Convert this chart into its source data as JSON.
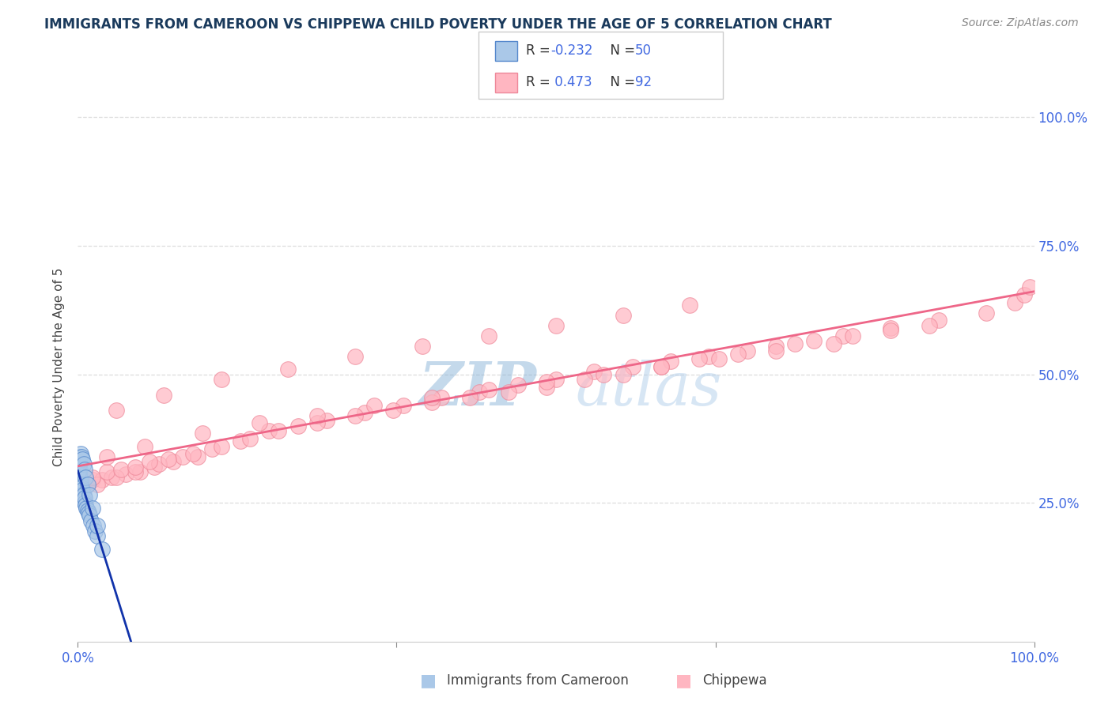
{
  "title": "IMMIGRANTS FROM CAMEROON VS CHIPPEWA CHILD POVERTY UNDER THE AGE OF 5 CORRELATION CHART",
  "source": "Source: ZipAtlas.com",
  "ylabel": "Child Poverty Under the Age of 5",
  "xlim": [
    0.0,
    1.0
  ],
  "ylim": [
    -0.02,
    1.05
  ],
  "color_blue_fill": "#aac8e8",
  "color_blue_edge": "#5588cc",
  "color_pink_fill": "#ffb6c1",
  "color_pink_edge": "#ee8899",
  "color_blue_line": "#1133aa",
  "color_pink_line": "#ee6688",
  "color_dashed": "#8899cc",
  "watermark_color": "#b8d4ee",
  "background": "#ffffff",
  "grid_color": "#dddddd",
  "title_color": "#1a3a5c",
  "ax_tick_color": "#4169e1",
  "blue_x": [
    0.0005,
    0.0008,
    0.001,
    0.001,
    0.0012,
    0.0015,
    0.0015,
    0.002,
    0.002,
    0.002,
    0.002,
    0.002,
    0.003,
    0.003,
    0.003,
    0.003,
    0.004,
    0.004,
    0.004,
    0.005,
    0.005,
    0.005,
    0.006,
    0.006,
    0.007,
    0.007,
    0.008,
    0.009,
    0.01,
    0.011,
    0.012,
    0.014,
    0.016,
    0.018,
    0.02,
    0.025,
    0.0005,
    0.001,
    0.0015,
    0.002,
    0.003,
    0.004,
    0.005,
    0.006,
    0.007,
    0.008,
    0.01,
    0.012,
    0.015,
    0.02
  ],
  "blue_y": [
    0.285,
    0.29,
    0.295,
    0.3,
    0.305,
    0.285,
    0.31,
    0.275,
    0.28,
    0.29,
    0.3,
    0.315,
    0.27,
    0.275,
    0.285,
    0.295,
    0.265,
    0.27,
    0.28,
    0.26,
    0.265,
    0.275,
    0.255,
    0.265,
    0.25,
    0.26,
    0.245,
    0.24,
    0.235,
    0.23,
    0.225,
    0.215,
    0.205,
    0.195,
    0.185,
    0.16,
    0.31,
    0.33,
    0.325,
    0.34,
    0.345,
    0.34,
    0.335,
    0.325,
    0.315,
    0.3,
    0.285,
    0.265,
    0.24,
    0.205
  ],
  "pink_x": [
    0.002,
    0.01,
    0.015,
    0.025,
    0.035,
    0.05,
    0.065,
    0.08,
    0.1,
    0.125,
    0.01,
    0.02,
    0.04,
    0.06,
    0.085,
    0.11,
    0.14,
    0.17,
    0.2,
    0.23,
    0.26,
    0.3,
    0.34,
    0.38,
    0.42,
    0.46,
    0.5,
    0.54,
    0.58,
    0.62,
    0.66,
    0.7,
    0.75,
    0.8,
    0.85,
    0.9,
    0.95,
    0.98,
    0.99,
    0.995,
    0.005,
    0.015,
    0.03,
    0.045,
    0.06,
    0.075,
    0.095,
    0.12,
    0.15,
    0.18,
    0.21,
    0.25,
    0.29,
    0.33,
    0.37,
    0.41,
    0.45,
    0.49,
    0.53,
    0.57,
    0.61,
    0.65,
    0.69,
    0.73,
    0.77,
    0.81,
    0.85,
    0.89,
    0.03,
    0.07,
    0.13,
    0.19,
    0.25,
    0.31,
    0.37,
    0.43,
    0.49,
    0.55,
    0.61,
    0.67,
    0.73,
    0.79,
    0.04,
    0.09,
    0.15,
    0.22,
    0.29,
    0.36,
    0.43,
    0.5,
    0.57,
    0.64
  ],
  "pink_y": [
    0.285,
    0.285,
    0.295,
    0.295,
    0.3,
    0.305,
    0.31,
    0.32,
    0.33,
    0.34,
    0.29,
    0.285,
    0.3,
    0.31,
    0.325,
    0.34,
    0.355,
    0.37,
    0.39,
    0.4,
    0.41,
    0.425,
    0.44,
    0.455,
    0.465,
    0.48,
    0.49,
    0.505,
    0.515,
    0.525,
    0.535,
    0.545,
    0.56,
    0.575,
    0.59,
    0.605,
    0.62,
    0.64,
    0.655,
    0.67,
    0.29,
    0.3,
    0.31,
    0.315,
    0.32,
    0.33,
    0.335,
    0.345,
    0.36,
    0.375,
    0.39,
    0.405,
    0.42,
    0.43,
    0.445,
    0.455,
    0.465,
    0.475,
    0.49,
    0.5,
    0.515,
    0.53,
    0.54,
    0.555,
    0.565,
    0.575,
    0.585,
    0.595,
    0.34,
    0.36,
    0.385,
    0.405,
    0.42,
    0.44,
    0.455,
    0.47,
    0.485,
    0.5,
    0.515,
    0.53,
    0.545,
    0.56,
    0.43,
    0.46,
    0.49,
    0.51,
    0.535,
    0.555,
    0.575,
    0.595,
    0.615,
    0.635
  ]
}
